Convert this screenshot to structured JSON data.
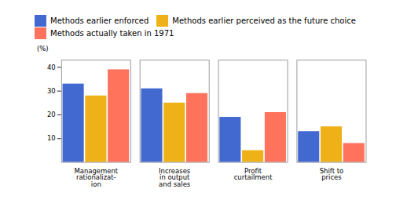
{
  "chart_data": {
    "type": "bar",
    "categories": [
      "Management\nrationalizat-\nion",
      "Increases\nin output\nand sales",
      "Profit\ncurtailment",
      "Shift to\nprices"
    ],
    "series": [
      {
        "name": "Methods earlier enforced",
        "values": [
          33,
          31,
          19,
          13
        ]
      },
      {
        "name": "Methods earlier perceived as the future choice",
        "values": [
          28,
          25,
          5,
          15
        ]
      },
      {
        "name": "Methods actually taken in 1971",
        "values": [
          39,
          29,
          21,
          8
        ]
      }
    ],
    "ylabel": "(%)",
    "ylim": [
      0,
      43
    ],
    "yticks": [
      10,
      20,
      30,
      40
    ],
    "grid": false,
    "legend": "top"
  }
}
